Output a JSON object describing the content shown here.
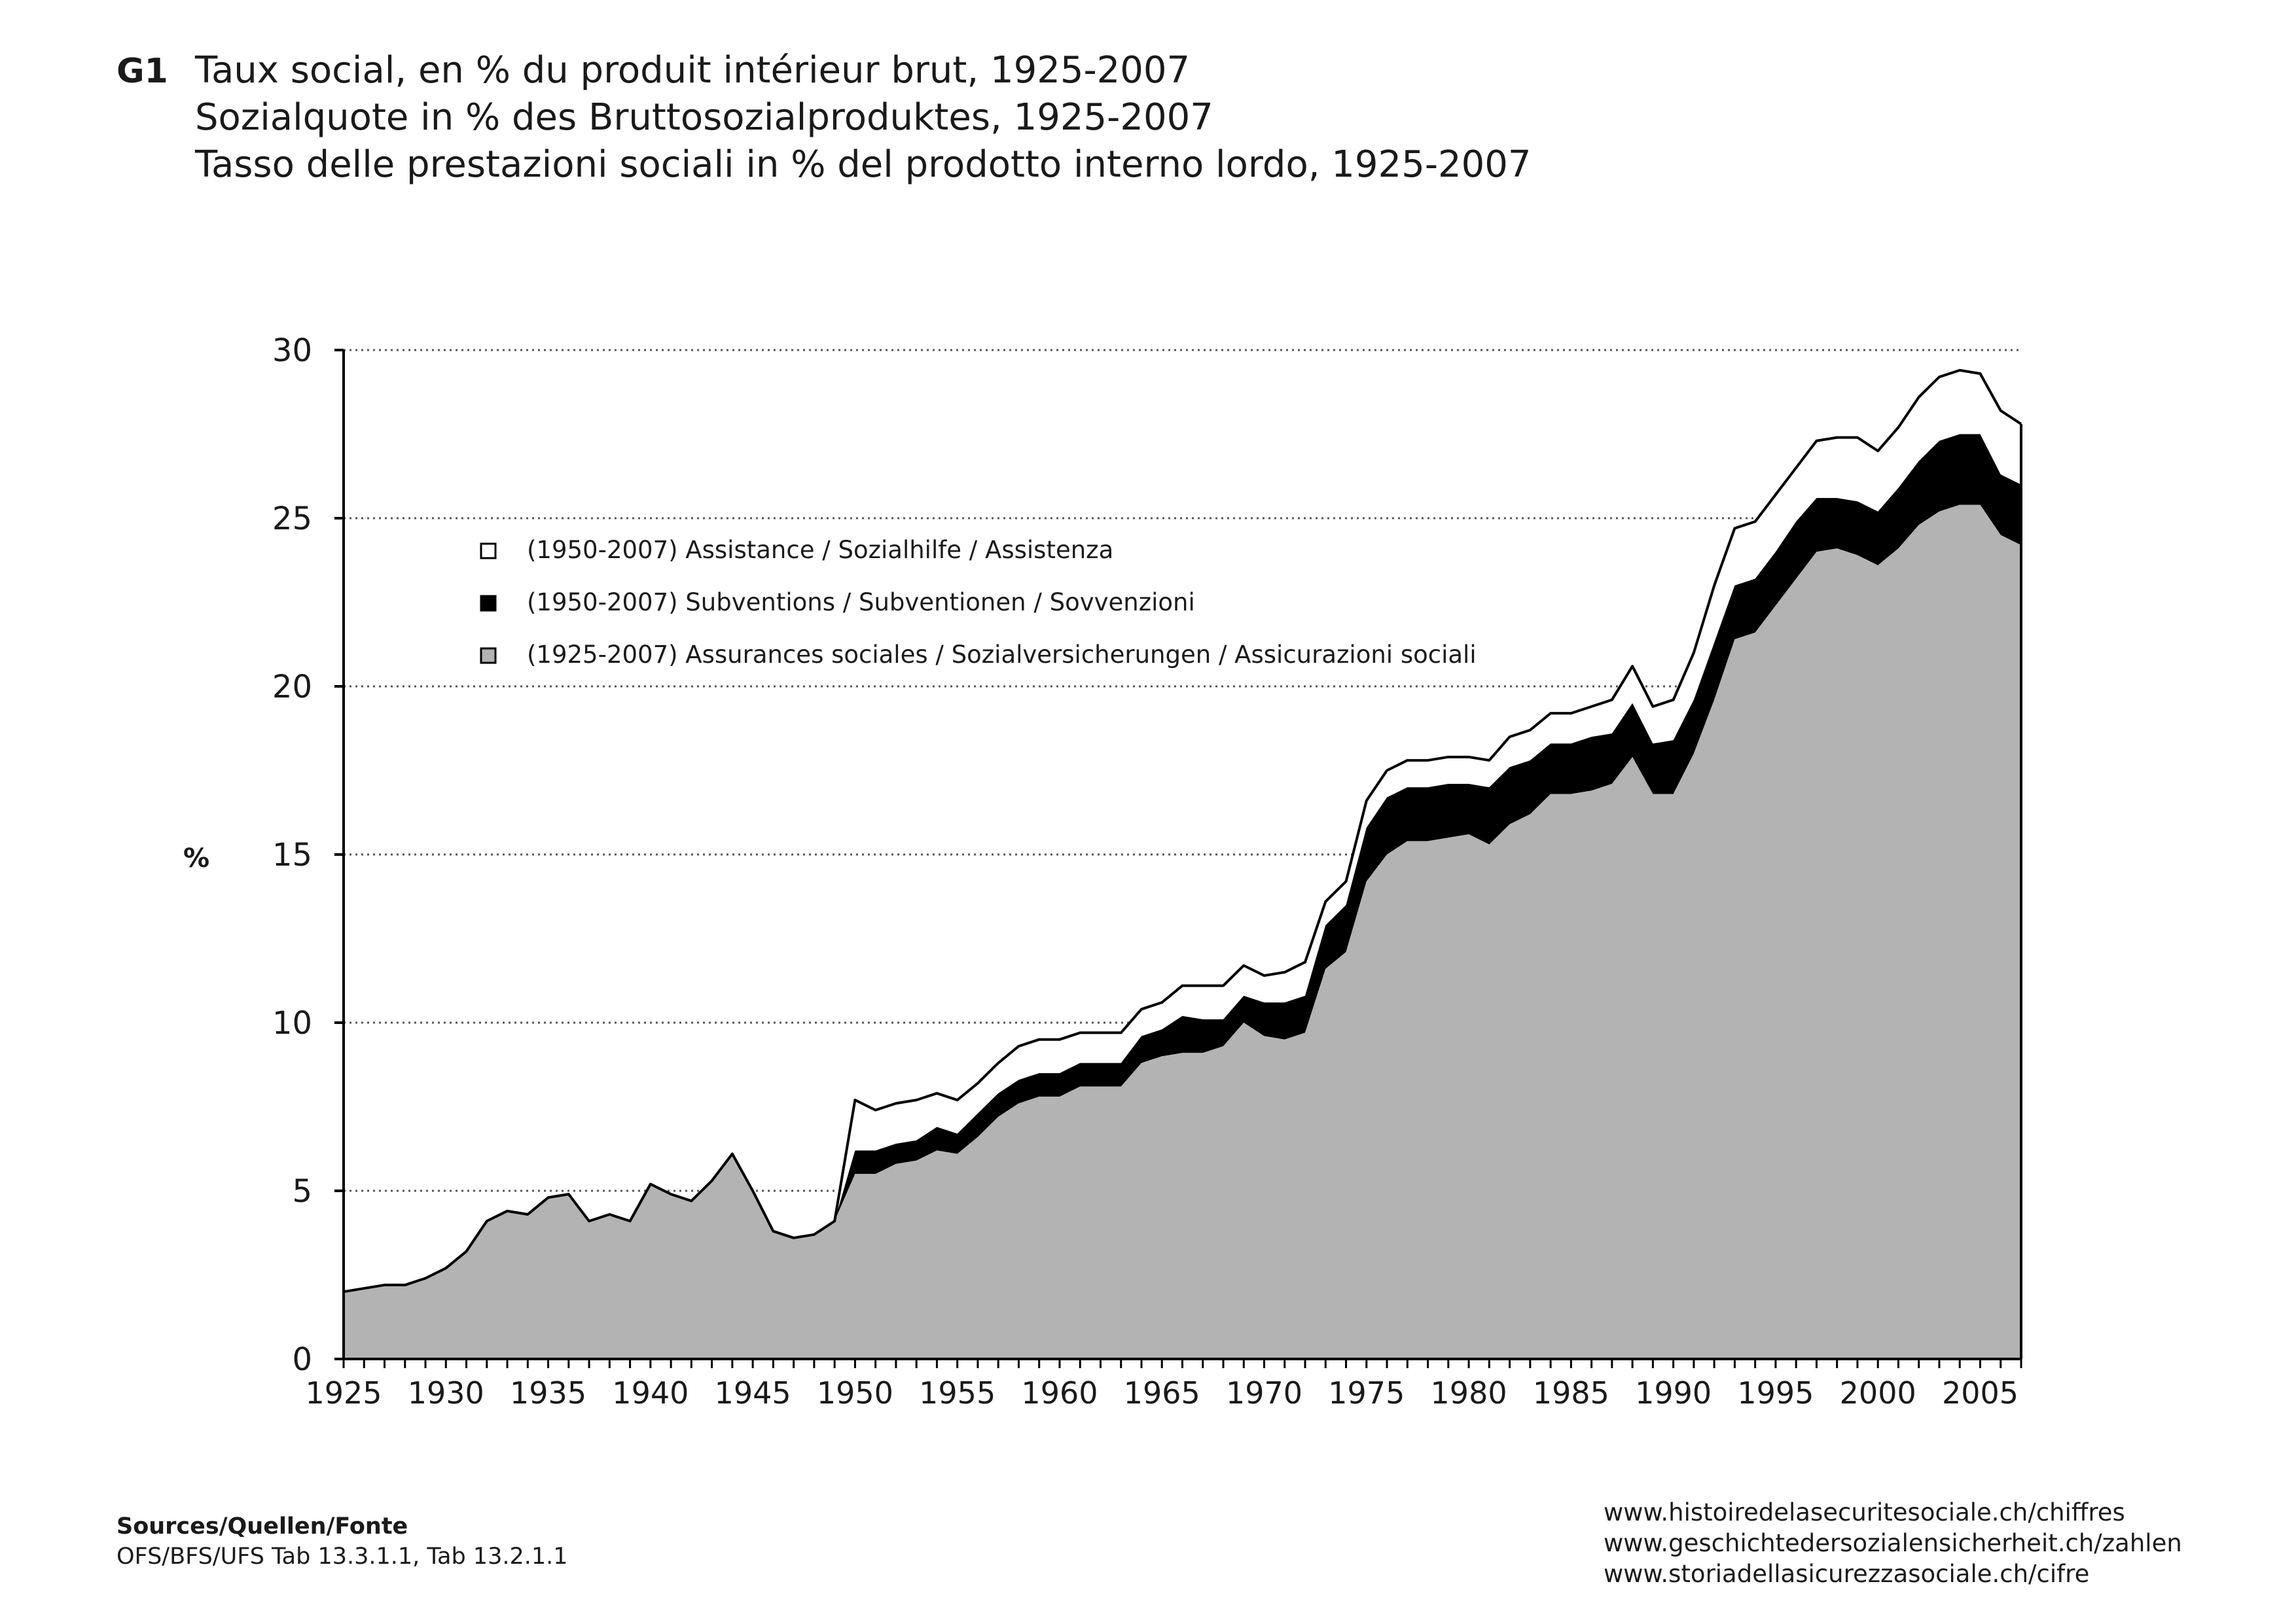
{
  "header": {
    "figure_label": "G1",
    "title_fr": "Taux social, en % du produit intérieur brut, 1925-2007",
    "title_de": "Sozialquote in % des Bruttosozialproduktes, 1925-2007",
    "title_it": "Tasso delle prestazioni sociali in % del prodotto interno lordo, 1925-2007"
  },
  "footer": {
    "sources_label": "Sources/Quellen/Fonte",
    "sources_text": "OFS/BFS/UFS Tab 13.3.1.1, Tab 13.2.1.1",
    "links": [
      "www.histoiredelasecuritesociale.ch/chiffres",
      "www.geschichtedersozialensicherheit.ch/zahlen",
      "www.storiadellasicurezzasociale.ch/cifre"
    ]
  },
  "chart_data": {
    "type": "area",
    "stacked": true,
    "title": "Taux social, en % du produit intérieur brut, 1925-2007",
    "xlabel": "",
    "ylabel": "%",
    "ylim": [
      0,
      30
    ],
    "xlim": [
      1925,
      2007
    ],
    "yticks": [
      0,
      5,
      10,
      15,
      20,
      25,
      30
    ],
    "xticks": [
      1925,
      1930,
      1935,
      1940,
      1945,
      1950,
      1955,
      1960,
      1965,
      1970,
      1975,
      1980,
      1985,
      1990,
      1995,
      2000,
      2005
    ],
    "grid": "horizontal dotted",
    "legend_position": "upper-left inside plot",
    "colors": {
      "assurances": "#b3b3b3",
      "subventions": "#000000",
      "assistance": "#ffffff",
      "outline": "#000000"
    },
    "x": [
      1925,
      1926,
      1927,
      1928,
      1929,
      1930,
      1931,
      1932,
      1933,
      1934,
      1935,
      1936,
      1937,
      1938,
      1939,
      1940,
      1941,
      1942,
      1943,
      1944,
      1945,
      1946,
      1947,
      1948,
      1949,
      1950,
      1951,
      1952,
      1953,
      1954,
      1955,
      1956,
      1957,
      1958,
      1959,
      1960,
      1961,
      1962,
      1963,
      1964,
      1965,
      1966,
      1967,
      1968,
      1969,
      1970,
      1971,
      1972,
      1973,
      1974,
      1975,
      1976,
      1977,
      1978,
      1979,
      1980,
      1981,
      1982,
      1983,
      1984,
      1985,
      1986,
      1987,
      1988,
      1989,
      1990,
      1991,
      1992,
      1993,
      1994,
      1995,
      1996,
      1997,
      1998,
      1999,
      2000,
      2001,
      2002,
      2003,
      2004,
      2005,
      2006,
      2007
    ],
    "series": [
      {
        "name": "(1925-2007)  Assurances sociales / Sozialversicherungen / Assicurazioni sociali",
        "key": "assurances",
        "values": [
          2.0,
          2.1,
          2.2,
          2.2,
          2.4,
          2.7,
          3.2,
          4.1,
          4.4,
          4.3,
          4.8,
          4.9,
          4.1,
          4.3,
          4.1,
          5.2,
          4.9,
          4.7,
          5.3,
          6.1,
          5.0,
          3.8,
          3.6,
          3.7,
          4.1,
          5.5,
          5.5,
          5.8,
          5.9,
          6.2,
          6.1,
          6.6,
          7.2,
          7.6,
          7.8,
          7.8,
          8.1,
          8.1,
          8.1,
          8.8,
          9.0,
          9.1,
          9.1,
          9.3,
          10.0,
          9.6,
          9.5,
          9.7,
          11.6,
          12.1,
          14.2,
          15.0,
          15.4,
          15.4,
          15.5,
          15.6,
          15.3,
          15.9,
          16.2,
          16.8,
          16.8,
          16.9,
          17.1,
          17.9,
          16.8,
          16.8,
          18.0,
          19.6,
          21.4,
          21.6,
          22.4,
          23.2,
          24.0,
          24.1,
          23.9,
          23.6,
          24.1,
          24.8,
          25.2,
          25.4,
          25.4,
          24.5,
          24.2
        ]
      },
      {
        "name": "(1950-2007)  Subventions / Subventionen /  Sovvenzioni",
        "key": "subventions",
        "values": [
          0,
          0,
          0,
          0,
          0,
          0,
          0,
          0,
          0,
          0,
          0,
          0,
          0,
          0,
          0,
          0,
          0,
          0,
          0,
          0,
          0,
          0,
          0,
          0,
          0,
          0.7,
          0.7,
          0.6,
          0.6,
          0.7,
          0.6,
          0.7,
          0.7,
          0.7,
          0.7,
          0.7,
          0.7,
          0.7,
          0.7,
          0.8,
          0.8,
          1.1,
          1.0,
          0.8,
          0.8,
          1.0,
          1.1,
          1.1,
          1.3,
          1.4,
          1.6,
          1.7,
          1.6,
          1.6,
          1.6,
          1.5,
          1.7,
          1.7,
          1.6,
          1.5,
          1.5,
          1.6,
          1.5,
          1.6,
          1.5,
          1.6,
          1.6,
          1.7,
          1.6,
          1.6,
          1.6,
          1.7,
          1.6,
          1.5,
          1.6,
          1.6,
          1.8,
          1.9,
          2.1,
          2.1,
          2.1,
          1.8,
          1.8
        ]
      },
      {
        "name": "(1950-2007)  Assistance / Sozialhilfe / Assistenza",
        "key": "assistance",
        "values": [
          0,
          0,
          0,
          0,
          0,
          0,
          0,
          0,
          0,
          0,
          0,
          0,
          0,
          0,
          0,
          0,
          0,
          0,
          0,
          0,
          0,
          0,
          0,
          0,
          0,
          1.5,
          1.2,
          1.2,
          1.2,
          1.0,
          1.0,
          0.9,
          0.9,
          1.0,
          1.0,
          1.0,
          0.9,
          0.9,
          0.9,
          0.8,
          0.8,
          0.9,
          1.0,
          1.0,
          0.9,
          0.8,
          0.9,
          1.0,
          0.7,
          0.7,
          0.8,
          0.8,
          0.8,
          0.8,
          0.8,
          0.8,
          0.8,
          0.9,
          0.9,
          0.9,
          0.9,
          0.9,
          1.0,
          1.1,
          1.1,
          1.2,
          1.4,
          1.7,
          1.7,
          1.7,
          1.7,
          1.6,
          1.7,
          1.8,
          1.9,
          1.8,
          1.8,
          1.9,
          1.9,
          1.9,
          1.8,
          1.9,
          1.8
        ]
      }
    ]
  }
}
